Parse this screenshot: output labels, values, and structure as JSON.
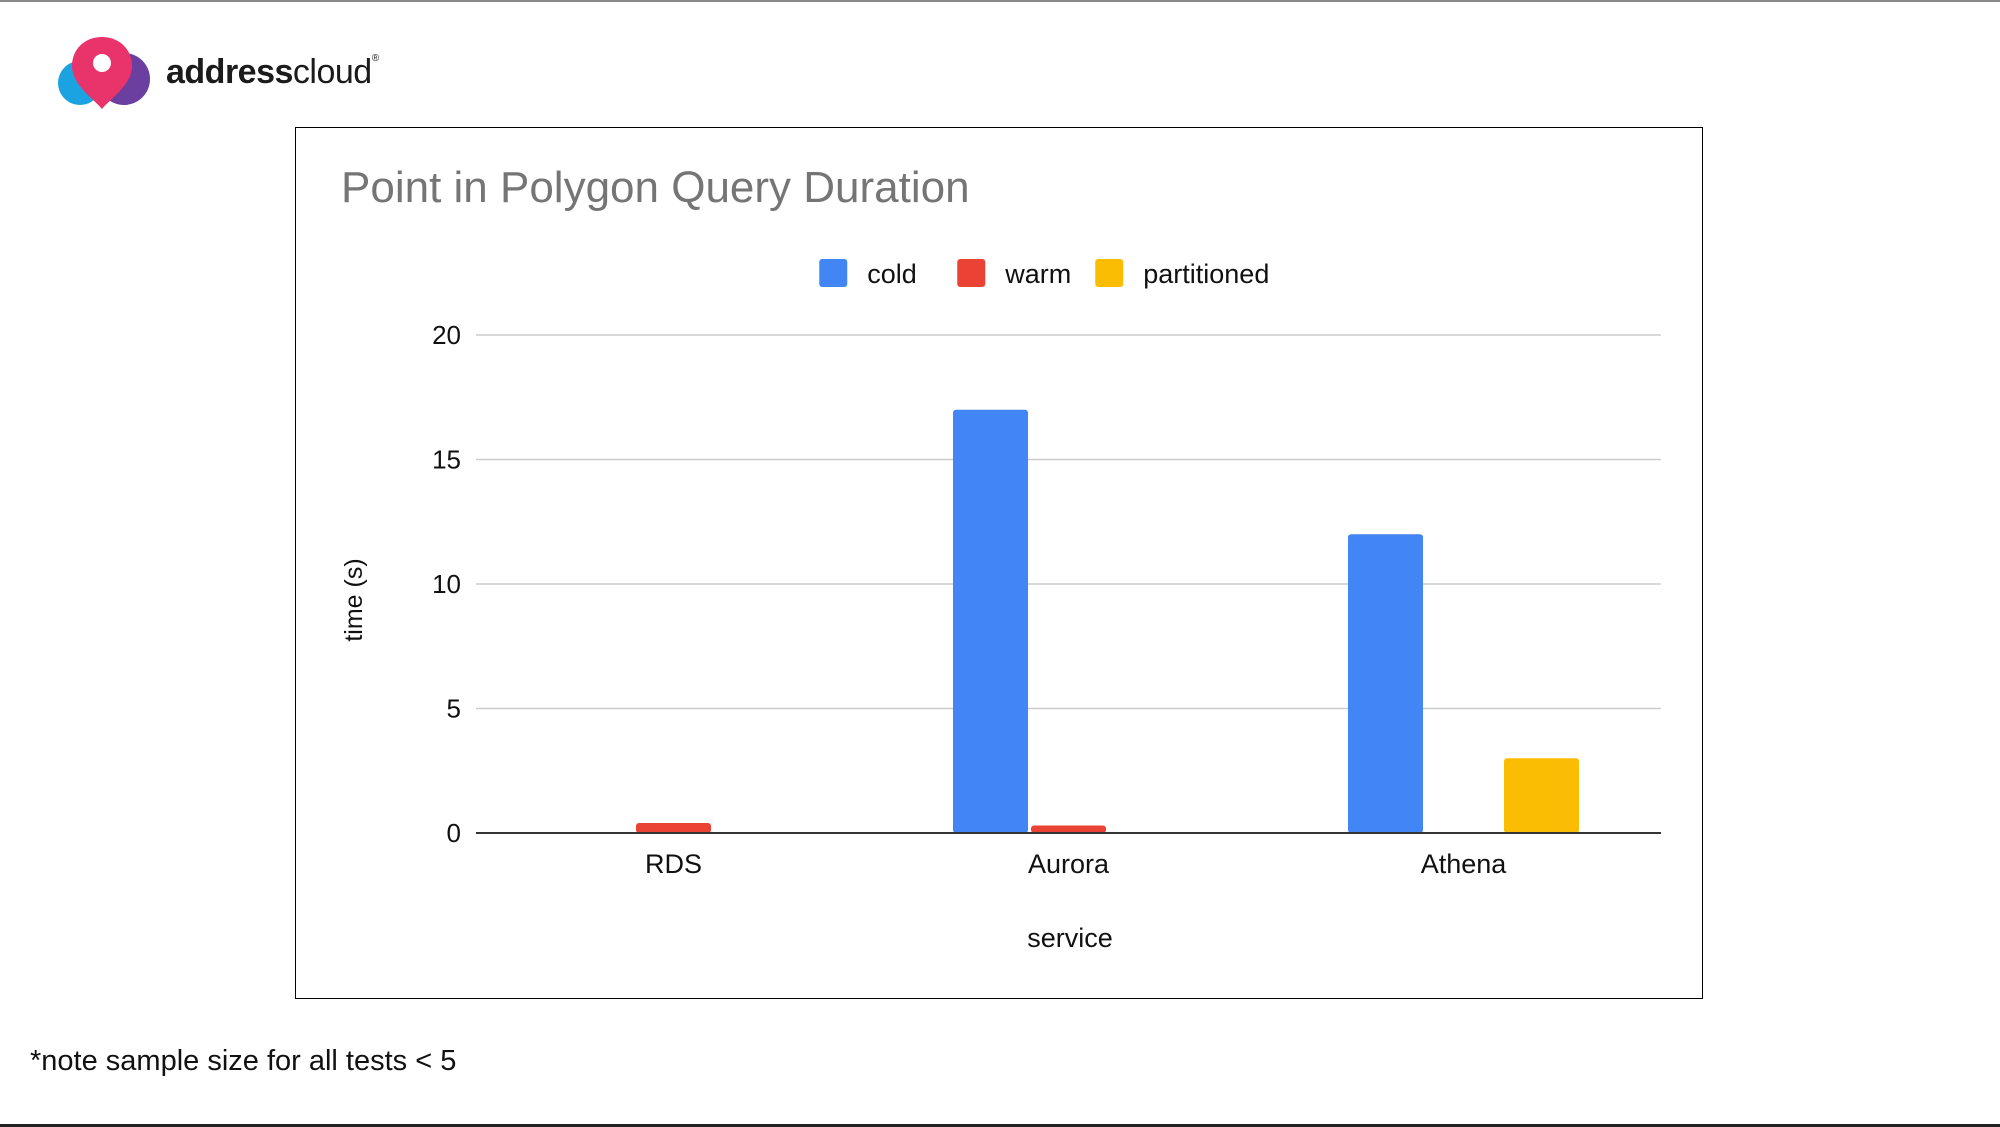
{
  "brand": {
    "name_bold": "address",
    "name_light": "cloud",
    "mark": "®",
    "colors": {
      "pink": "#e8336b",
      "blue": "#1aa3e0",
      "purple": "#6a3fa0"
    }
  },
  "footnote": "*note sample size for all tests < 5",
  "chart_data": {
    "type": "bar",
    "title": "Point in Polygon Query Duration",
    "xlabel": "service",
    "ylabel": "time (s)",
    "categories": [
      "RDS",
      "Aurora",
      "Athena"
    ],
    "series": [
      {
        "name": "cold",
        "color": "#4285f4",
        "values": [
          0,
          17,
          12
        ]
      },
      {
        "name": "warm",
        "color": "#ea4335",
        "values": [
          0.4,
          0.3,
          0
        ]
      },
      {
        "name": "partitioned",
        "color": "#fbbc04",
        "values": [
          0,
          0,
          3
        ]
      }
    ],
    "ylim": [
      0,
      20
    ],
    "yticks": [
      0,
      5,
      10,
      15,
      20
    ],
    "grid": true,
    "legend_position": "top-center"
  }
}
